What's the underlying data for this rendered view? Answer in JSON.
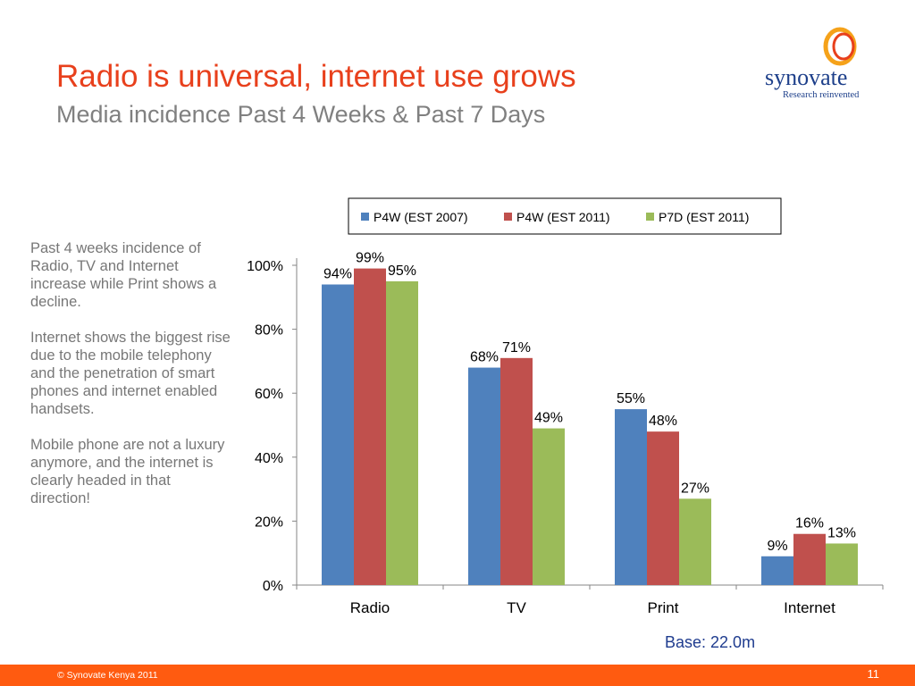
{
  "slide": {
    "title": "Radio is universal, internet use grows",
    "subtitle": "Media incidence Past 4 Weeks & Past 7 Days",
    "logo_text": "synovate",
    "logo_tagline": "Research reinvented",
    "paragraphs": [
      "Past 4 weeks incidence of Radio, TV and Internet increase while Print shows a decline.",
      "Internet shows the biggest rise due to the mobile telephony and the penetration of smart phones and internet enabled handsets.",
      "Mobile phone are not a luxury anymore, and the internet is clearly headed in that direction!"
    ],
    "base_note": "Base: 22.0m",
    "copyright": "© Synovate Kenya 2011",
    "page_number": "11"
  },
  "colors": {
    "title": "#e8401c",
    "footer": "#ff5b10",
    "series": [
      "#4f81bd",
      "#c0504d",
      "#9bbb59"
    ]
  },
  "chart_data": {
    "type": "bar",
    "categories": [
      "Radio",
      "TV",
      "Print",
      "Internet"
    ],
    "series": [
      {
        "name": "P4W (EST 2007)",
        "values": [
          94,
          68,
          55,
          9
        ],
        "labels": [
          "94%",
          "68%",
          "55%",
          "9%"
        ]
      },
      {
        "name": "P4W (EST 2011)",
        "values": [
          99,
          71,
          48,
          16
        ],
        "labels": [
          "99%",
          "71%",
          "48%",
          "16%"
        ]
      },
      {
        "name": "P7D (EST 2011)",
        "values": [
          95,
          49,
          27,
          13
        ],
        "labels": [
          "95%",
          "49%",
          "27%",
          "13%"
        ]
      }
    ],
    "ylim": [
      0,
      100
    ],
    "yticks": [
      "0%",
      "20%",
      "40%",
      "60%",
      "80%",
      "100%"
    ],
    "ytick_values": [
      0,
      20,
      40,
      60,
      80,
      100
    ],
    "legend_position": "top",
    "grid": false
  }
}
